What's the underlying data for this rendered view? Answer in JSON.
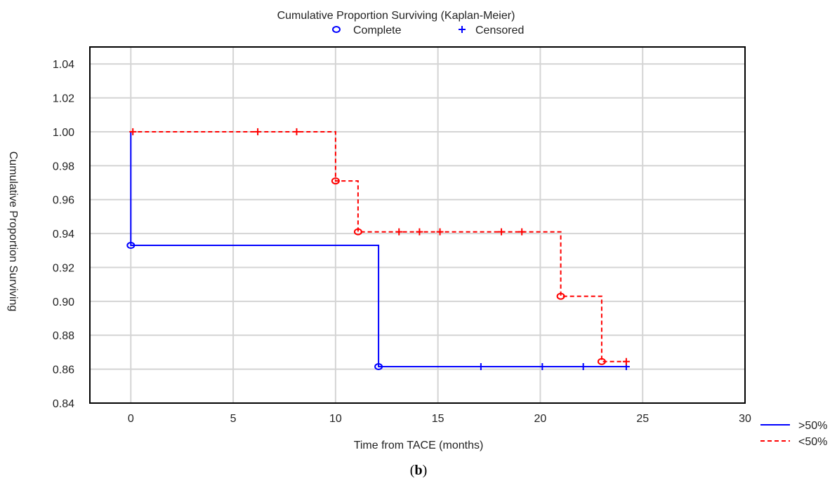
{
  "chart_data": {
    "type": "line",
    "subtype": "kaplan-meier-step",
    "title": "Cumulative Proportion Surviving (Kaplan-Meier)",
    "xlabel": "Time from TACE (months)",
    "ylabel": "Cumulative Proportion Surviving",
    "xlim": [
      -2,
      30
    ],
    "ylim": [
      0.84,
      1.05
    ],
    "xticks": [
      0,
      5,
      10,
      15,
      20,
      25,
      30
    ],
    "yticks": [
      0.84,
      0.86,
      0.88,
      0.9,
      0.92,
      0.94,
      0.96,
      0.98,
      1.0,
      1.02,
      1.04
    ],
    "ytick_labels": [
      "0.84",
      "0.86",
      "0.88",
      "0.90",
      "0.92",
      "0.94",
      "0.96",
      "0.98",
      "1.00",
      "1.02",
      "1.04"
    ],
    "grid": true,
    "marker_legend": [
      {
        "symbol": "o",
        "label": "Complete"
      },
      {
        "symbol": "+",
        "label": "Censored"
      }
    ],
    "series": [
      {
        "name": ">50%",
        "color": "#0000ff",
        "dash": "solid",
        "steps": [
          [
            0,
            1.0
          ],
          [
            0,
            0.933
          ],
          [
            12.1,
            0.933
          ],
          [
            12.1,
            0.8615
          ],
          [
            24.2,
            0.8615
          ]
        ],
        "complete": [
          [
            0,
            0.933
          ],
          [
            12.1,
            0.8615
          ]
        ],
        "censored": [
          [
            17.1,
            0.8615
          ],
          [
            20.1,
            0.8615
          ],
          [
            22.1,
            0.8615
          ],
          [
            24.2,
            0.8615
          ]
        ]
      },
      {
        "name": "<50%",
        "color": "#ff0000",
        "dash": "dashed",
        "steps": [
          [
            0,
            1.0
          ],
          [
            10.0,
            1.0
          ],
          [
            10.0,
            0.971
          ],
          [
            11.1,
            0.971
          ],
          [
            11.1,
            0.941
          ],
          [
            21.0,
            0.941
          ],
          [
            21.0,
            0.903
          ],
          [
            23.0,
            0.903
          ],
          [
            23.0,
            0.8645
          ],
          [
            24.2,
            0.8645
          ]
        ],
        "complete": [
          [
            10.0,
            0.971
          ],
          [
            11.1,
            0.941
          ],
          [
            21.0,
            0.903
          ],
          [
            23.0,
            0.8645
          ]
        ],
        "censored": [
          [
            0.1,
            1.0
          ],
          [
            6.2,
            1.0
          ],
          [
            8.1,
            1.0
          ],
          [
            13.1,
            0.941
          ],
          [
            14.1,
            0.941
          ],
          [
            15.1,
            0.941
          ],
          [
            18.1,
            0.941
          ],
          [
            19.1,
            0.941
          ],
          [
            24.2,
            0.8645
          ]
        ]
      }
    ],
    "legend_position": "bottom-right"
  },
  "panel_label": "b"
}
